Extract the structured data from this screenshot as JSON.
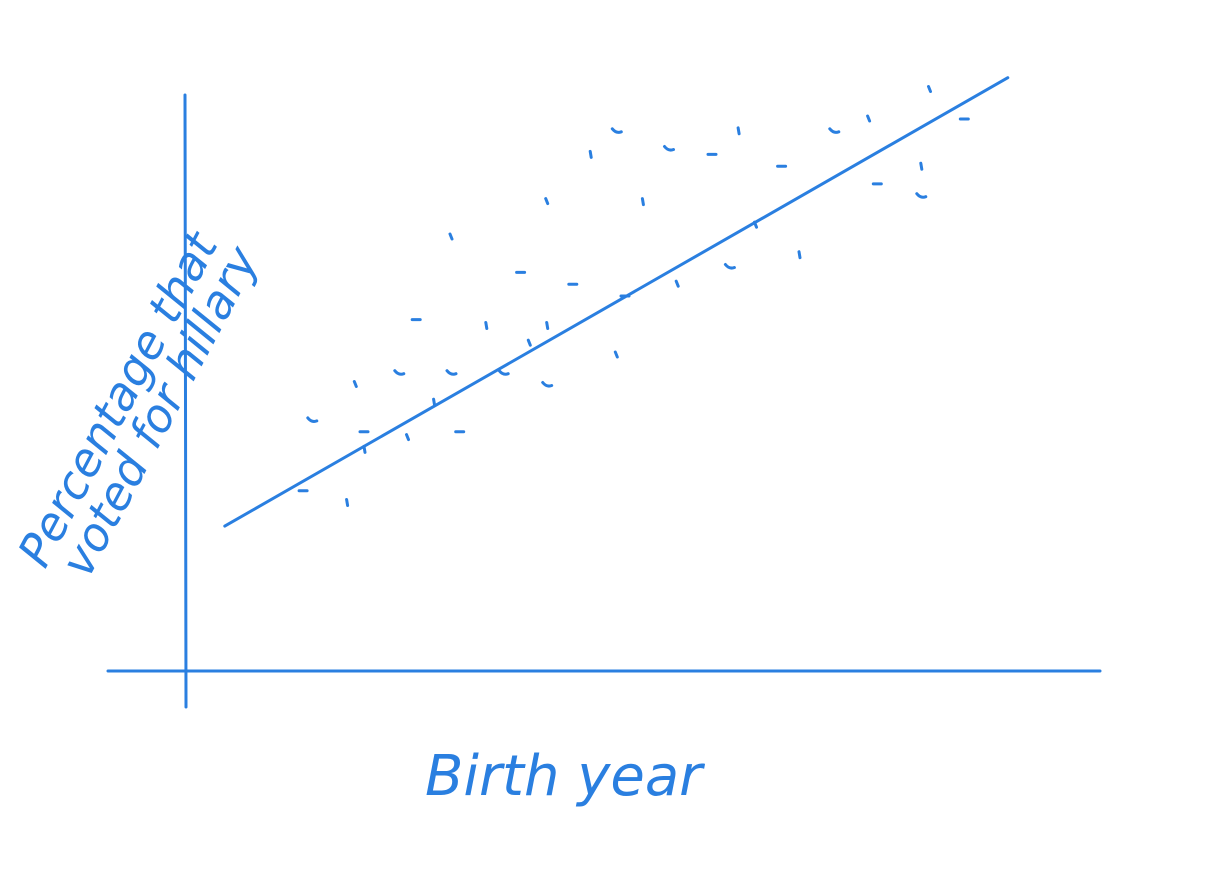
{
  "chart_data": {
    "type": "scatter",
    "title": "",
    "xlabel": "Birth year",
    "ylabel_line1": "Percentage that",
    "ylabel_line2": "voted for hillary",
    "xlim": [
      0,
      100
    ],
    "ylim": [
      0,
      100
    ],
    "grid": false,
    "ink_color": "#2a7fe0",
    "points": [
      {
        "x": 13,
        "y": 27
      },
      {
        "x": 18,
        "y": 25
      },
      {
        "x": 14,
        "y": 39
      },
      {
        "x": 19,
        "y": 45
      },
      {
        "x": 20,
        "y": 37
      },
      {
        "x": 20,
        "y": 34
      },
      {
        "x": 24,
        "y": 47
      },
      {
        "x": 25,
        "y": 36
      },
      {
        "x": 26,
        "y": 56
      },
      {
        "x": 28,
        "y": 42
      },
      {
        "x": 30,
        "y": 47
      },
      {
        "x": 30,
        "y": 70
      },
      {
        "x": 31,
        "y": 37
      },
      {
        "x": 34,
        "y": 55
      },
      {
        "x": 36,
        "y": 47
      },
      {
        "x": 39,
        "y": 52
      },
      {
        "x": 38,
        "y": 64
      },
      {
        "x": 41,
        "y": 55
      },
      {
        "x": 41,
        "y": 45
      },
      {
        "x": 41,
        "y": 76
      },
      {
        "x": 44,
        "y": 62
      },
      {
        "x": 46,
        "y": 84
      },
      {
        "x": 49,
        "y": 88
      },
      {
        "x": 49,
        "y": 50
      },
      {
        "x": 50,
        "y": 60
      },
      {
        "x": 52,
        "y": 76
      },
      {
        "x": 55,
        "y": 85
      },
      {
        "x": 56,
        "y": 62
      },
      {
        "x": 60,
        "y": 84
      },
      {
        "x": 63,
        "y": 88
      },
      {
        "x": 62,
        "y": 65
      },
      {
        "x": 65,
        "y": 72
      },
      {
        "x": 68,
        "y": 82
      },
      {
        "x": 70,
        "y": 67
      },
      {
        "x": 74,
        "y": 88
      },
      {
        "x": 78,
        "y": 90
      },
      {
        "x": 79,
        "y": 79
      },
      {
        "x": 84,
        "y": 82
      },
      {
        "x": 84,
        "y": 77
      },
      {
        "x": 85,
        "y": 95
      },
      {
        "x": 89,
        "y": 90
      }
    ],
    "trend_line": {
      "x": [
        4,
        94
      ],
      "y": [
        21,
        97
      ]
    }
  }
}
